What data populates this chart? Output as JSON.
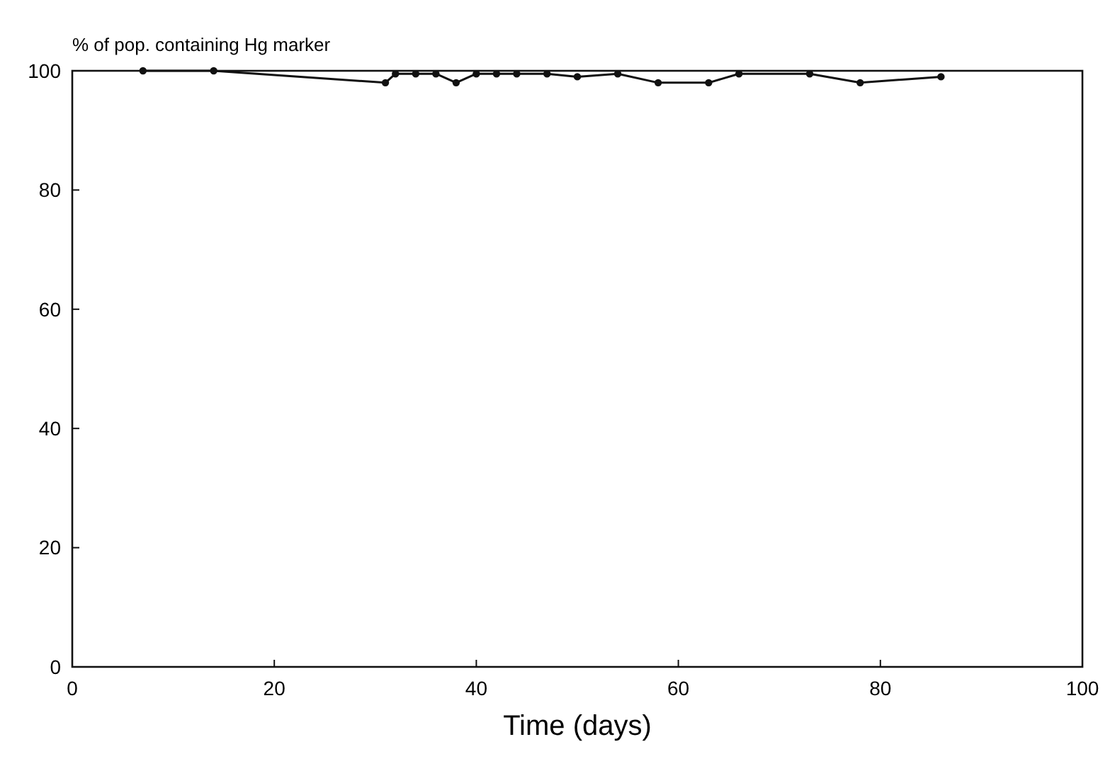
{
  "chart_data": {
    "type": "line",
    "ylabel": "% of pop. containing Hg marker",
    "xlabel": "Time (days)",
    "x": [
      7,
      14,
      31,
      32,
      34,
      36,
      38,
      40,
      42,
      44,
      47,
      50,
      54,
      58,
      63,
      66,
      73,
      78,
      86
    ],
    "series": [
      {
        "color": "#111111",
        "values": [
          100,
          100,
          98,
          99.5,
          99.5,
          99.5,
          98,
          99.5,
          99.5,
          99.5,
          99.5,
          99,
          99.5,
          98,
          98,
          99.5,
          99.5,
          98,
          99
        ]
      }
    ],
    "xlim": [
      0,
      100
    ],
    "xticks": [
      0,
      20,
      40,
      60,
      80,
      100
    ],
    "ylim": [
      0,
      100
    ],
    "yticks": [
      0,
      20,
      40,
      60,
      80,
      100
    ],
    "grid": false,
    "marker": "circle",
    "line_style": "solid"
  }
}
